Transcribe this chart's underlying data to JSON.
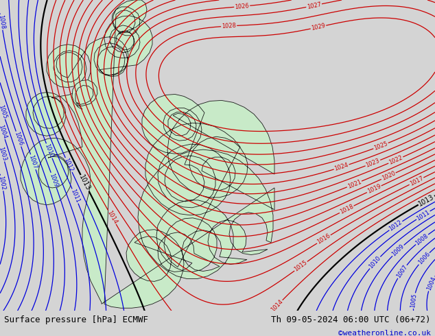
{
  "title_left": "Surface pressure [hPa] ECMWF",
  "title_right": "Th 09-05-2024 06:00 UTC (06+72)",
  "credit": "©weatheronline.co.uk",
  "bg_color": "#d4d4d4",
  "land_color": "#c8eac8",
  "sea_color": "#e0e0e0",
  "contour_low_color": "#0000dd",
  "contour_high_color": "#cc0000",
  "contour_black_color": "#000000",
  "contour_black_value": 1013,
  "text_color_bottom": "#000000",
  "text_color_credit": "#0000cc",
  "bottom_bar_color": "#c0c0c0",
  "figsize": [
    6.34,
    4.9
  ],
  "dpi": 100
}
